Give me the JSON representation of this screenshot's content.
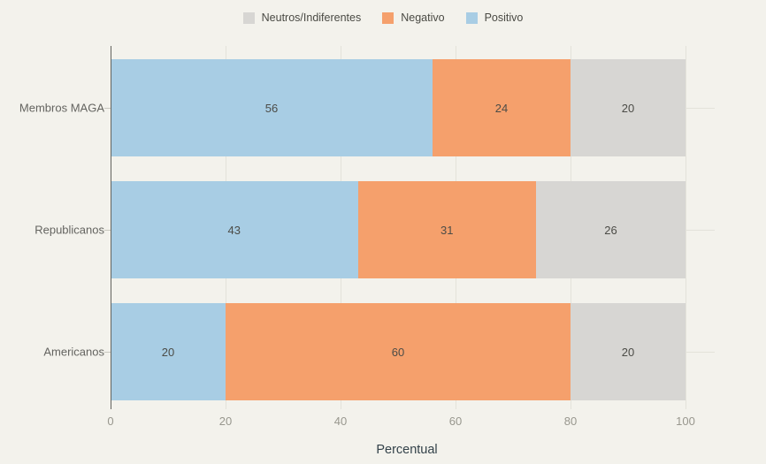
{
  "chart_data": {
    "type": "bar",
    "orientation": "horizontal",
    "stacked": true,
    "title": "",
    "xlabel": "Percentual",
    "ylabel": "",
    "xlim": [
      0,
      100
    ],
    "x_ticks": [
      0,
      20,
      40,
      60,
      80,
      100
    ],
    "grid": true,
    "categories": [
      "Membros MAGA",
      "Republicanos",
      "Americanos"
    ],
    "series": [
      {
        "name": "Positivo",
        "color": "#a8cde4",
        "values": [
          56,
          43,
          20
        ]
      },
      {
        "name": "Negativo",
        "color": "#f5a06c",
        "values": [
          24,
          31,
          60
        ]
      },
      {
        "name": "Neutros/Indiferentes",
        "color": "#d7d6d3",
        "values": [
          20,
          26,
          20
        ]
      }
    ],
    "legend": {
      "position": "top",
      "items": [
        {
          "label": "Neutros/Indiferentes",
          "color": "#d7d6d3"
        },
        {
          "label": "Negativo",
          "color": "#f5a06c"
        },
        {
          "label": "Positivo",
          "color": "#a8cde4"
        }
      ]
    }
  },
  "theme": {
    "background": "#f3f2ec",
    "axis_line": "#63635e",
    "gridline": "#e3e2da",
    "value_text": "#4c4c47",
    "category_text": "#646460",
    "tick_text": "#98978e",
    "axis_title_text": "#33424a"
  }
}
